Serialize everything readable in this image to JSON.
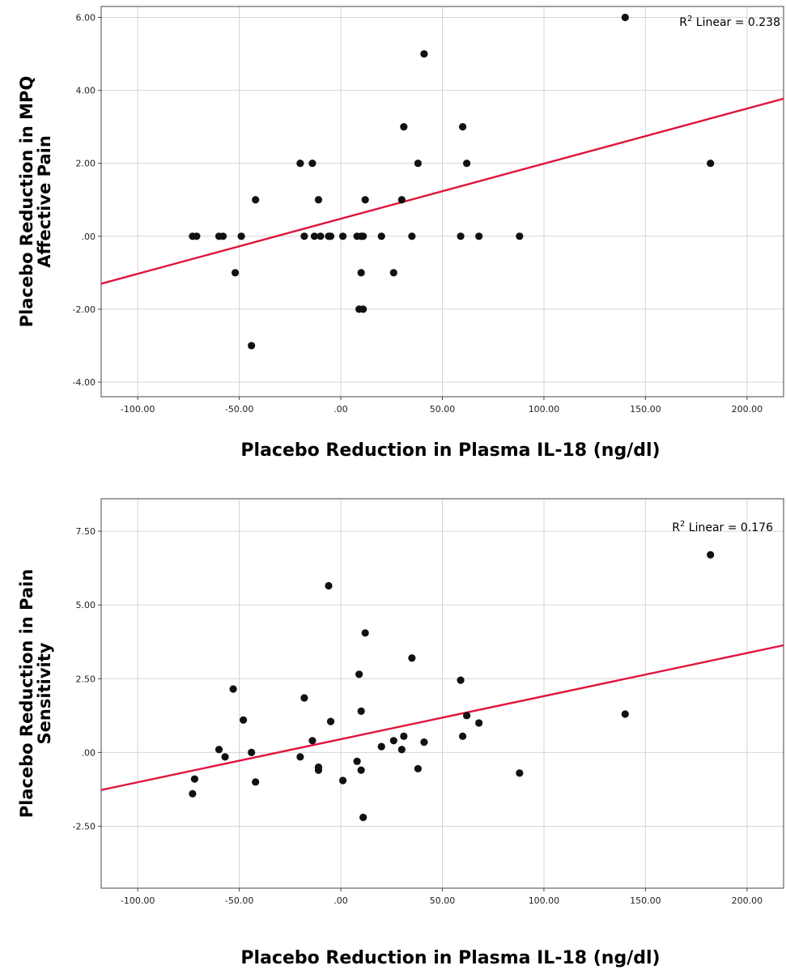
{
  "chart_data": [
    {
      "type": "scatter",
      "xlabel": "Placebo Reduction in Plasma IL-18 (ng/dl)",
      "ylabel_lines": [
        "Placebo Reduction in MPQ",
        "Affective Pain"
      ],
      "xlim": [
        -118,
        218
      ],
      "ylim": [
        -4.4,
        6.3
      ],
      "xticks": [
        -100,
        -50,
        0,
        50,
        100,
        150,
        200
      ],
      "xtick_labels": [
        "-100.00",
        "-50.00",
        ".00",
        "50.00",
        "100.00",
        "150.00",
        "200.00"
      ],
      "yticks": [
        6,
        4,
        2,
        0,
        -2,
        -4
      ],
      "ytick_labels": [
        "6.00",
        "4.00",
        "2.00",
        ".00",
        "-2.00",
        "-4.00"
      ],
      "fit": {
        "label_prefix": "R",
        "label_sup": "2",
        "label_suffix": " Linear = 0.238",
        "color": "#e0143c",
        "intercept": 0.48,
        "slope": 0.0151
      },
      "point_color": "#111111",
      "points": [
        [
          -73,
          0
        ],
        [
          -71,
          0
        ],
        [
          -60,
          0
        ],
        [
          -58,
          0
        ],
        [
          -52,
          -1
        ],
        [
          -49,
          0
        ],
        [
          -44,
          -3
        ],
        [
          -42,
          1
        ],
        [
          -20,
          2
        ],
        [
          -18,
          0
        ],
        [
          -14,
          2
        ],
        [
          -13,
          0
        ],
        [
          -11,
          1
        ],
        [
          -10,
          0
        ],
        [
          -6,
          0
        ],
        [
          -5,
          0
        ],
        [
          1,
          0
        ],
        [
          8,
          0
        ],
        [
          9,
          -2
        ],
        [
          10,
          0
        ],
        [
          10,
          -1
        ],
        [
          11,
          -2
        ],
        [
          11,
          0
        ],
        [
          12,
          1
        ],
        [
          20,
          0
        ],
        [
          26,
          -1
        ],
        [
          30,
          1
        ],
        [
          31,
          3
        ],
        [
          35,
          0
        ],
        [
          38,
          2
        ],
        [
          41,
          5
        ],
        [
          59,
          0
        ],
        [
          60,
          3
        ],
        [
          62,
          2
        ],
        [
          68,
          0
        ],
        [
          88,
          0
        ],
        [
          140,
          6
        ],
        [
          182,
          2
        ]
      ]
    },
    {
      "type": "scatter",
      "xlabel": "Placebo Reduction in Plasma IL-18 (ng/dl)",
      "ylabel_lines": [
        "Placebo Reduction in Pain",
        "Sensitivity"
      ],
      "xlim": [
        -118,
        218
      ],
      "ylim": [
        -4.6,
        8.6
      ],
      "xticks": [
        -100,
        -50,
        0,
        50,
        100,
        150,
        200
      ],
      "xtick_labels": [
        "-100.00",
        "-50.00",
        ".00",
        "50.00",
        "100.00",
        "150.00",
        "200.00"
      ],
      "yticks": [
        7.5,
        5,
        2.5,
        0,
        -2.5
      ],
      "ytick_labels": [
        "7.50",
        "5.00",
        "2.50",
        ".00",
        "-2.50"
      ],
      "fit": {
        "label_prefix": "R",
        "label_sup": "2",
        "label_suffix": " Linear = 0.176",
        "color": "#e0143c",
        "intercept": 0.45,
        "slope": 0.0146
      },
      "point_color": "#111111",
      "points": [
        [
          -73,
          -1.4
        ],
        [
          -72,
          -0.9
        ],
        [
          -60,
          0.1
        ],
        [
          -57,
          -0.15
        ],
        [
          -53,
          2.15
        ],
        [
          -48,
          1.1
        ],
        [
          -44,
          0.0
        ],
        [
          -42,
          -1.0
        ],
        [
          -20,
          -0.15
        ],
        [
          -18,
          1.85
        ],
        [
          -14,
          0.4
        ],
        [
          -11,
          -0.6
        ],
        [
          -11,
          -0.5
        ],
        [
          -6,
          5.65
        ],
        [
          -5,
          1.05
        ],
        [
          1,
          -0.95
        ],
        [
          8,
          -0.3
        ],
        [
          9,
          2.65
        ],
        [
          10,
          -0.6
        ],
        [
          10,
          1.4
        ],
        [
          11,
          -2.2
        ],
        [
          12,
          4.05
        ],
        [
          20,
          0.2
        ],
        [
          26,
          0.4
        ],
        [
          30,
          0.1
        ],
        [
          31,
          0.55
        ],
        [
          35,
          3.2
        ],
        [
          38,
          -0.55
        ],
        [
          41,
          0.35
        ],
        [
          59,
          2.45
        ],
        [
          60,
          0.55
        ],
        [
          62,
          1.25
        ],
        [
          68,
          1.0
        ],
        [
          88,
          -0.7
        ],
        [
          140,
          1.3
        ],
        [
          182,
          6.7
        ]
      ]
    }
  ]
}
